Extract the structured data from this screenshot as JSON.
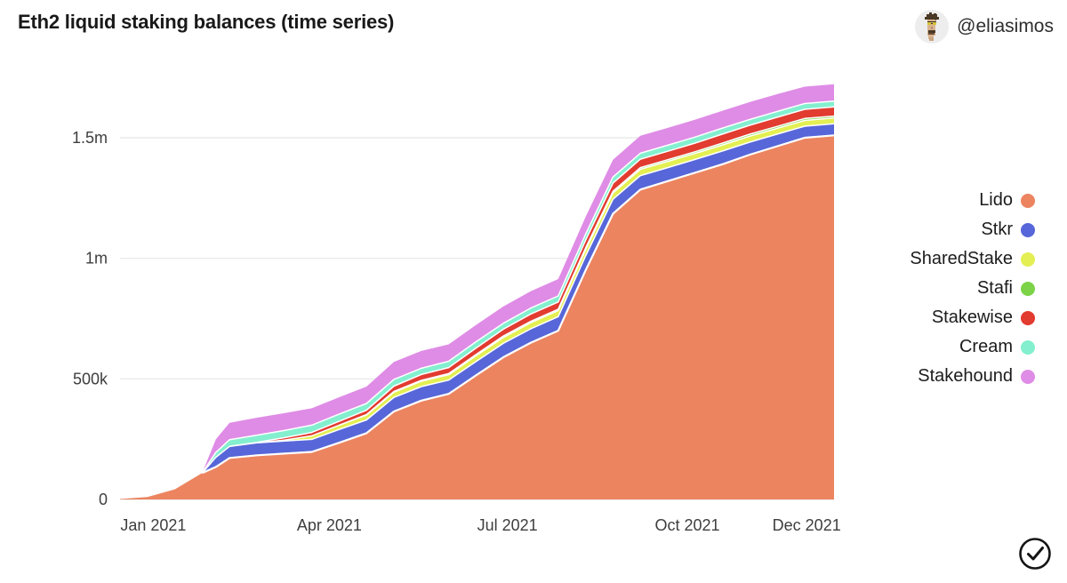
{
  "header": {
    "title": "Eth2 liquid staking balances (time series)",
    "handle": "@eliasimos",
    "avatar_icon": "pixel-punk-avatar"
  },
  "footer": {
    "verified_icon": "check-circle"
  },
  "colors": {
    "background": "#ffffff",
    "grid": "#eaeaea",
    "axis_text": "#3e3e3e",
    "title_text": "#191919",
    "separator": "#ffffff"
  },
  "chart_data": {
    "type": "area",
    "stacked": true,
    "title": "Eth2 liquid staking balances (time series)",
    "xlabel": "",
    "ylabel": "",
    "grid": "horizontal",
    "legend_position": "right",
    "ylim": [
      0,
      1740000
    ],
    "x_dates": [
      "2020-12-15",
      "2020-12-29",
      "2021-01-12",
      "2021-01-26",
      "2021-02-02",
      "2021-02-09",
      "2021-02-23",
      "2021-03-09",
      "2021-03-23",
      "2021-04-06",
      "2021-04-20",
      "2021-05-04",
      "2021-05-18",
      "2021-06-01",
      "2021-06-15",
      "2021-06-29",
      "2021-07-13",
      "2021-07-27",
      "2021-08-10",
      "2021-08-24",
      "2021-09-07",
      "2021-09-21",
      "2021-10-05",
      "2021-10-19",
      "2021-11-02",
      "2021-11-16",
      "2021-11-30",
      "2021-12-15"
    ],
    "yticks": [
      {
        "label": "0",
        "value": 0
      },
      {
        "label": "500k",
        "value": 500000
      },
      {
        "label": "1m",
        "value": 1000000
      },
      {
        "label": "1.5m",
        "value": 1500000
      }
    ],
    "xticks": [
      {
        "label": "Jan 2021",
        "date": "2021-01-01"
      },
      {
        "label": "Apr 2021",
        "date": "2021-04-01"
      },
      {
        "label": "Jul 2021",
        "date": "2021-07-01"
      },
      {
        "label": "Oct 2021",
        "date": "2021-10-01"
      },
      {
        "label": "Dec 2021",
        "date": "2021-12-01"
      }
    ],
    "series": [
      {
        "name": "Lido",
        "color": "#ec8460",
        "values": [
          2000,
          10000,
          42000,
          110000,
          135000,
          172000,
          183000,
          190000,
          197000,
          235000,
          275000,
          365000,
          410000,
          438000,
          515000,
          590000,
          650000,
          700000,
          950000,
          1185000,
          1285000,
          1320000,
          1355000,
          1390000,
          1430000,
          1465000,
          1500000,
          1510000
        ]
      },
      {
        "name": "Stkr",
        "color": "#5767d9",
        "values": [
          0,
          0,
          0,
          0,
          40000,
          48000,
          52000,
          52000,
          52000,
          55000,
          55000,
          58000,
          58000,
          57000,
          57000,
          58000,
          58000,
          58000,
          60000,
          60000,
          58000,
          56000,
          55000,
          55000,
          52000,
          50000,
          48000,
          48000
        ]
      },
      {
        "name": "SharedStake",
        "color": "#e3ef52",
        "values": [
          0,
          0,
          0,
          0,
          0,
          0,
          0,
          4000,
          15000,
          18000,
          20000,
          22000,
          22000,
          22000,
          24000,
          24000,
          25000,
          25000,
          26000,
          26000,
          26000,
          26000,
          25000,
          25000,
          25000,
          24000,
          24000,
          24000
        ]
      },
      {
        "name": "Stafi",
        "color": "#7cd348",
        "values": [
          0,
          0,
          0,
          0,
          0,
          0,
          0,
          0,
          0,
          0,
          2000,
          3000,
          4000,
          5000,
          5000,
          6000,
          6000,
          6000,
          7000,
          7000,
          7000,
          7000,
          7000,
          8000,
          8000,
          8000,
          8000,
          8000
        ]
      },
      {
        "name": "Stakewise",
        "color": "#e23b30",
        "values": [
          0,
          0,
          0,
          0,
          0,
          0,
          2000,
          10000,
          14000,
          16000,
          18000,
          22000,
          24000,
          25000,
          27000,
          28000,
          30000,
          30000,
          32000,
          34000,
          35000,
          35000,
          36000,
          37000,
          37000,
          38000,
          38000,
          38000
        ]
      },
      {
        "name": "Cream",
        "color": "#83efcf",
        "values": [
          0,
          0,
          0,
          0,
          20000,
          28000,
          30000,
          30000,
          30000,
          30000,
          28000,
          28000,
          26000,
          26000,
          26000,
          25000,
          25000,
          25000,
          25000,
          25000,
          25000,
          25000,
          25000,
          25000,
          24000,
          24000,
          24000,
          24000
        ]
      },
      {
        "name": "Stakehound",
        "color": "#df8ce6",
        "values": [
          0,
          0,
          0,
          0,
          55000,
          70000,
          72000,
          72000,
          70000,
          70000,
          70000,
          72000,
          72000,
          70000,
          70000,
          70000,
          70000,
          70000,
          72000,
          72000,
          72000,
          72000,
          72000,
          72000,
          72000,
          72000,
          70000,
          70000
        ]
      }
    ]
  }
}
